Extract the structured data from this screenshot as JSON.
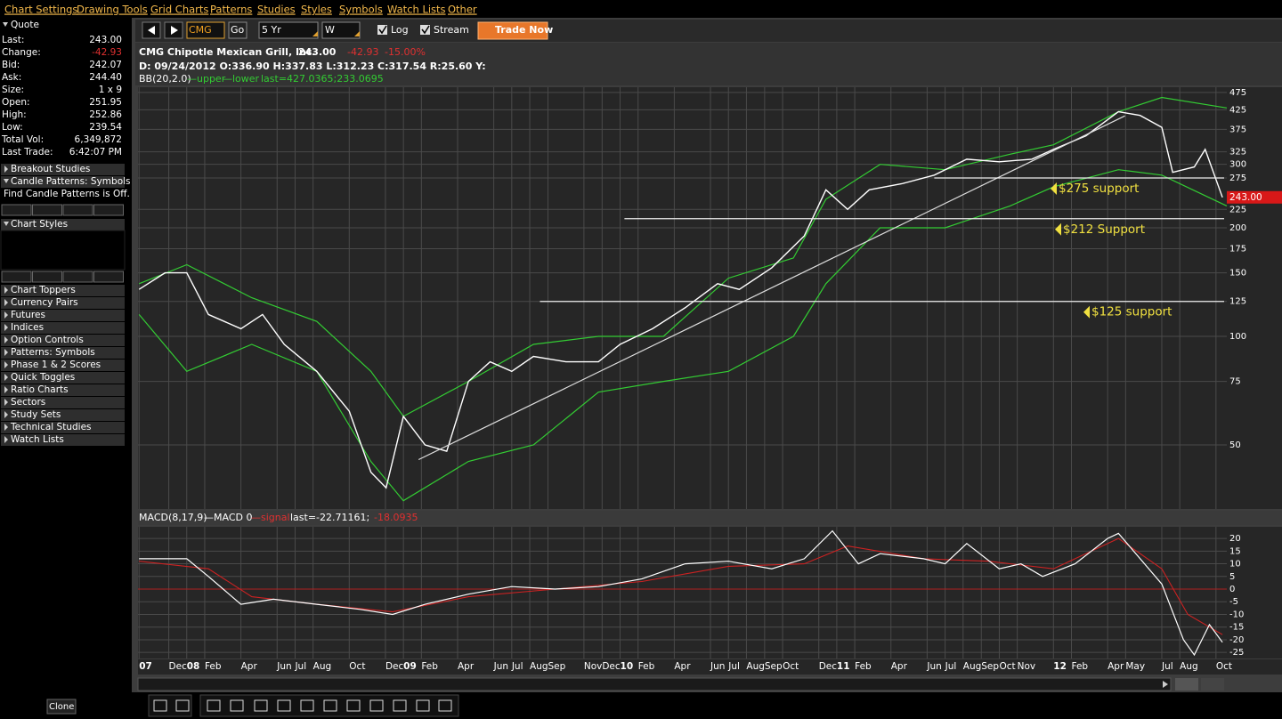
{
  "menu": [
    "Chart Settings",
    "Drawing Tools",
    "Grid Charts",
    "Patterns",
    "Studies",
    "Styles",
    "Symbols",
    "Watch Lists",
    "Other"
  ],
  "quote": {
    "title": "Quote",
    "rows": [
      [
        "Last:",
        "243.00"
      ],
      [
        "Change:",
        "-42.93"
      ],
      [
        "Bid:",
        "242.07"
      ],
      [
        "Ask:",
        "244.40"
      ],
      [
        "Size:",
        "1 x 9"
      ],
      [
        "Open:",
        "251.95"
      ],
      [
        "High:",
        "252.86"
      ],
      [
        "Low:",
        "239.54"
      ],
      [
        "Total Vol:",
        "6,349,872"
      ],
      [
        "Last Trade:",
        "6:42:07 PM"
      ]
    ]
  },
  "sidebar": {
    "top": [
      "Breakout Studies",
      "Candle Patterns: Symbols"
    ],
    "note": "Find Candle Patterns is Off.",
    "styles": "Chart Styles",
    "items": [
      "Chart Toppers",
      "Currency Pairs",
      "Futures",
      "Indices",
      "Option Controls",
      "Patterns: Symbols",
      "Phase 1 & 2 Scores",
      "Quick Toggles",
      "Ratio Charts",
      "Sectors",
      "Study Sets",
      "Technical Studies",
      "Watch Lists"
    ]
  },
  "toolbar": {
    "symbol": "CMG",
    "go": "Go",
    "period": "5 Yr",
    "interval": "W",
    "log": "Log",
    "stream": "Stream",
    "trade": "Trade Now"
  },
  "header": {
    "title": "CMG Chipotle Mexican Grill, Inc.",
    "price": "243.00",
    "change": "-42.93",
    "change_pct": "-15.00%",
    "ohlc": "D: 09/24/2012 O:336.90 H:337.83 L:312.23 C:317.54 R:25.60 Y:",
    "bb": "BB(20,2.0)",
    "bb_upper": "—upper",
    "bb_lower": "—lower",
    "bb_last": "last=427.0365;233.0695",
    "macd": "MACD(8,17,9)",
    "macd_line": "—MACD 0",
    "macd_signal": "—signal",
    "macd_last": "last=-22.71161;",
    "macd_signal_last": "-18.0935"
  },
  "chart_data": [
    {
      "type": "line",
      "log_scale": true,
      "grid": true,
      "color": "#ffffff",
      "xlim": [
        2007.775,
        2012.8
      ],
      "ylim": [
        33.2,
        491
      ],
      "yticks": [
        50,
        75,
        100,
        125,
        150,
        175,
        200,
        225,
        275,
        300,
        325,
        375,
        425,
        475
      ],
      "xticks": [
        {
          "value": 2007.78,
          "label": "07"
        },
        {
          "value": 2007.917,
          "label": "Dec"
        },
        {
          "value": 2008,
          "label": "08"
        },
        {
          "value": 2008.083,
          "label": "Feb"
        },
        {
          "value": 2008.25,
          "label": "Apr"
        },
        {
          "value": 2008.417,
          "label": "Jun"
        },
        {
          "value": 2008.5,
          "label": "Jul"
        },
        {
          "value": 2008.583,
          "label": "Aug"
        },
        {
          "value": 2008.75,
          "label": "Oct"
        },
        {
          "value": 2008.917,
          "label": "Dec"
        },
        {
          "value": 2009,
          "label": "09"
        },
        {
          "value": 2009.083,
          "label": "Feb"
        },
        {
          "value": 2009.25,
          "label": "Apr"
        },
        {
          "value": 2009.417,
          "label": "Jun"
        },
        {
          "value": 2009.5,
          "label": "Jul"
        },
        {
          "value": 2009.583,
          "label": "Aug"
        },
        {
          "value": 2009.667,
          "label": "Sep"
        },
        {
          "value": 2009.833,
          "label": "Nov"
        },
        {
          "value": 2009.917,
          "label": "Dec"
        },
        {
          "value": 2010,
          "label": "10"
        },
        {
          "value": 2010.083,
          "label": "Feb"
        },
        {
          "value": 2010.25,
          "label": "Apr"
        },
        {
          "value": 2010.417,
          "label": "Jun"
        },
        {
          "value": 2010.5,
          "label": "Jul"
        },
        {
          "value": 2010.583,
          "label": "Aug"
        },
        {
          "value": 2010.667,
          "label": "Sep"
        },
        {
          "value": 2010.75,
          "label": "Oct"
        },
        {
          "value": 2010.917,
          "label": "Dec"
        },
        {
          "value": 2011,
          "label": "11"
        },
        {
          "value": 2011.083,
          "label": "Feb"
        },
        {
          "value": 2011.25,
          "label": "Apr"
        },
        {
          "value": 2011.417,
          "label": "Jun"
        },
        {
          "value": 2011.5,
          "label": "Jul"
        },
        {
          "value": 2011.583,
          "label": "Aug"
        },
        {
          "value": 2011.667,
          "label": "Sep"
        },
        {
          "value": 2011.75,
          "label": "Oct"
        },
        {
          "value": 2011.833,
          "label": "Nov"
        },
        {
          "value": 2012,
          "label": "12"
        },
        {
          "value": 2012.083,
          "label": "Feb"
        },
        {
          "value": 2012.25,
          "label": "Apr"
        },
        {
          "value": 2012.333,
          "label": "May"
        },
        {
          "value": 2012.5,
          "label": "Jul"
        },
        {
          "value": 2012.583,
          "label": "Aug"
        },
        {
          "value": 2012.75,
          "label": "Oct"
        }
      ],
      "x": [
        2007.78,
        2007.9,
        2008.0,
        2008.1,
        2008.25,
        2008.35,
        2008.45,
        2008.6,
        2008.75,
        2008.85,
        2008.92,
        2009.0,
        2009.1,
        2009.2,
        2009.3,
        2009.4,
        2009.5,
        2009.6,
        2009.75,
        2009.9,
        2010.0,
        2010.15,
        2010.3,
        2010.45,
        2010.55,
        2010.7,
        2010.85,
        2010.95,
        2011.05,
        2011.15,
        2011.3,
        2011.45,
        2011.6,
        2011.75,
        2011.9,
        2012.0,
        2012.15,
        2012.3,
        2012.4,
        2012.5,
        2012.55,
        2012.65,
        2012.7,
        2012.78
      ],
      "values": [
        135,
        150,
        150,
        115,
        105,
        115,
        95,
        80,
        62,
        42,
        38,
        60,
        50,
        48,
        75,
        85,
        80,
        88,
        85,
        85,
        95,
        105,
        120,
        140,
        135,
        155,
        190,
        255,
        225,
        255,
        265,
        280,
        310,
        305,
        310,
        330,
        360,
        420,
        410,
        380,
        285,
        295,
        330,
        243
      ],
      "bands": {
        "color": "#33cc33",
        "x": [
          2007.78,
          2008.0,
          2008.3,
          2008.6,
          2008.85,
          2009.0,
          2009.3,
          2009.6,
          2009.9,
          2010.2,
          2010.5,
          2010.8,
          2010.95,
          2011.2,
          2011.5,
          2011.8,
          2012.0,
          2012.3,
          2012.5,
          2012.8
        ],
        "upper": [
          140,
          158,
          128,
          110,
          80,
          60,
          75,
          95,
          100,
          100,
          145,
          165,
          240,
          300,
          290,
          320,
          340,
          420,
          460,
          430
        ],
        "lower": [
          115,
          80,
          95,
          80,
          45,
          35,
          45,
          50,
          70,
          75,
          80,
          100,
          140,
          200,
          200,
          230,
          260,
          290,
          280,
          230
        ]
      },
      "trendline": {
        "x": [
          2009.07,
          2012.33
        ],
        "values": [
          45.5,
          409
        ]
      },
      "annotations": [
        {
          "text": "$275 support",
          "value": 275,
          "x": 2011.45
        },
        {
          "text": "$212 Support",
          "value": 212,
          "x": 2010.02
        },
        {
          "text": "$125 support",
          "value": 125,
          "x": 2009.63
        }
      ]
    },
    {
      "type": "line",
      "grid": true,
      "xlim": [
        2007.775,
        2012.8
      ],
      "ylim": [
        -27.4,
        24.6
      ],
      "yticks": [
        20,
        15,
        10,
        5,
        0,
        -5,
        -10,
        -15,
        -20,
        -25
      ],
      "macd": {
        "color": "#ffffff",
        "x": [
          2007.78,
          2008.0,
          2008.1,
          2008.25,
          2008.4,
          2008.6,
          2008.8,
          2008.95,
          2009.1,
          2009.3,
          2009.5,
          2009.7,
          2009.9,
          2010.1,
          2010.3,
          2010.5,
          2010.7,
          2010.85,
          2010.98,
          2011.1,
          2011.2,
          2011.4,
          2011.5,
          2011.6,
          2011.75,
          2011.85,
          2011.95,
          2012.1,
          2012.25,
          2012.3,
          2012.5,
          2012.6,
          2012.65,
          2012.72,
          2012.78
        ],
        "values": [
          12,
          12,
          5,
          -6,
          -4,
          -6,
          -8,
          -10,
          -6,
          -2,
          1,
          0,
          1,
          4,
          10,
          11,
          8,
          12,
          23,
          10,
          14,
          12,
          10,
          18,
          8,
          10,
          5,
          10,
          20,
          22,
          2,
          -20,
          -26,
          -14,
          -21
        ]
      },
      "signal": {
        "color": "#cc2222",
        "x": [
          2007.78,
          2008.1,
          2008.3,
          2008.6,
          2008.95,
          2009.3,
          2009.7,
          2010.1,
          2010.5,
          2010.85,
          2011.05,
          2011.4,
          2011.7,
          2012.0,
          2012.3,
          2012.5,
          2012.62,
          2012.78
        ],
        "values": [
          11,
          8,
          -3,
          -6,
          -9,
          -3,
          0,
          3,
          9,
          10,
          17,
          12,
          11,
          8,
          20,
          8,
          -10,
          -18
        ]
      }
    }
  ],
  "footer": {
    "clone": "Clone"
  }
}
